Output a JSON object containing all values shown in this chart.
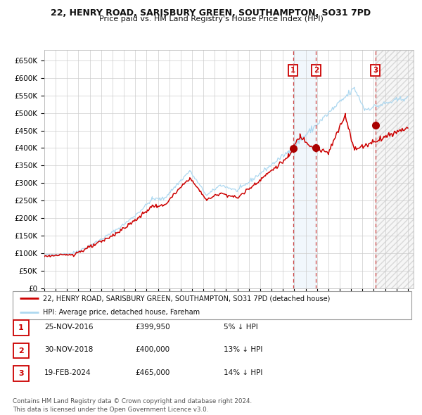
{
  "title": "22, HENRY ROAD, SARISBURY GREEN, SOUTHAMPTON, SO31 7PD",
  "subtitle": "Price paid vs. HM Land Registry's House Price Index (HPI)",
  "ylim": [
    0,
    680000
  ],
  "yticks": [
    0,
    50000,
    100000,
    150000,
    200000,
    250000,
    300000,
    350000,
    400000,
    450000,
    500000,
    550000,
    600000,
    650000
  ],
  "xlim_start": 1995.0,
  "xlim_end": 2027.5,
  "sale_dates": [
    2016.9,
    2018.92,
    2024.13
  ],
  "sale_prices": [
    399950,
    400000,
    465000
  ],
  "sale_labels": [
    "1",
    "2",
    "3"
  ],
  "hpi_line_color": "#add8f0",
  "price_line_color": "#cc0000",
  "sale_dot_color": "#aa0000",
  "dashed_line_color": "#cc4444",
  "shade_color": "#d8eaf8",
  "legend_entries": [
    "22, HENRY ROAD, SARISBURY GREEN, SOUTHAMPTON, SO31 7PD (detached house)",
    "HPI: Average price, detached house, Fareham"
  ],
  "table_rows": [
    [
      "1",
      "25-NOV-2016",
      "£399,950",
      "5% ↓ HPI"
    ],
    [
      "2",
      "30-NOV-2018",
      "£400,000",
      "13% ↓ HPI"
    ],
    [
      "3",
      "19-FEB-2024",
      "£465,000",
      "14% ↓ HPI"
    ]
  ],
  "footer": "Contains HM Land Registry data © Crown copyright and database right 2024.\nThis data is licensed under the Open Government Licence v3.0.",
  "background_color": "#ffffff",
  "grid_color": "#cccccc"
}
